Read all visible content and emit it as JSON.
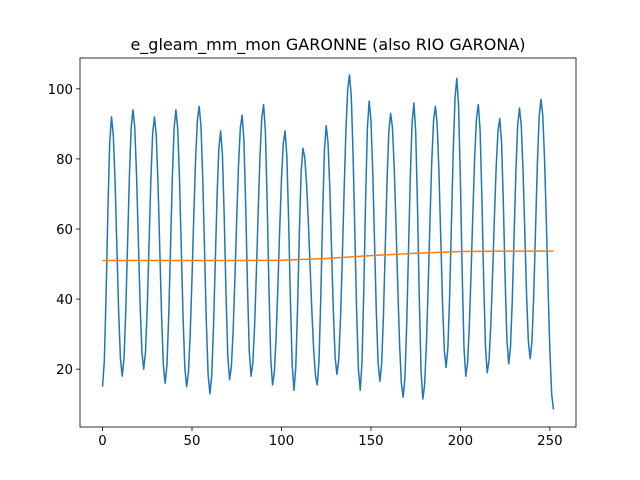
{
  "chart_data": {
    "type": "line",
    "title": "e_gleam_mm_mon GARONNE (also RIO GARONA)",
    "xlim": [
      -12.6,
      264.6
    ],
    "xticks": [
      0,
      50,
      100,
      150,
      200,
      250
    ],
    "ylim": [
      3.5,
      108.8
    ],
    "yticks": [
      20,
      40,
      60,
      80,
      100
    ],
    "series": [
      {
        "color": "#1f77b4",
        "x": [
          0,
          1,
          2,
          3,
          4,
          5,
          6,
          7,
          8,
          9,
          10,
          11,
          12,
          13,
          14,
          15,
          16,
          17,
          18,
          19,
          20,
          21,
          22,
          23,
          24,
          25,
          26,
          27,
          28,
          29,
          30,
          31,
          32,
          33,
          34,
          35,
          36,
          37,
          38,
          39,
          40,
          41,
          42,
          43,
          44,
          45,
          46,
          47,
          48,
          49,
          50,
          51,
          52,
          53,
          54,
          55,
          56,
          57,
          58,
          59,
          60,
          61,
          62,
          63,
          64,
          65,
          66,
          67,
          68,
          69,
          70,
          71,
          72,
          73,
          74,
          75,
          76,
          77,
          78,
          79,
          80,
          81,
          82,
          83,
          84,
          85,
          86,
          87,
          88,
          89,
          90,
          91,
          92,
          93,
          94,
          95,
          96,
          97,
          98,
          99,
          100,
          101,
          102,
          103,
          104,
          105,
          106,
          107,
          108,
          109,
          110,
          111,
          112,
          113,
          114,
          115,
          116,
          117,
          118,
          119,
          120,
          121,
          122,
          123,
          124,
          125,
          126,
          127,
          128,
          129,
          130,
          131,
          132,
          133,
          134,
          135,
          136,
          137,
          138,
          139,
          140,
          141,
          142,
          143,
          144,
          145,
          146,
          147,
          148,
          149,
          150,
          151,
          152,
          153,
          154,
          155,
          156,
          157,
          158,
          159,
          160,
          161,
          162,
          163,
          164,
          165,
          166,
          167,
          168,
          169,
          170,
          171,
          172,
          173,
          174,
          175,
          176,
          177,
          178,
          179,
          180,
          181,
          182,
          183,
          184,
          185,
          186,
          187,
          188,
          189,
          190,
          191,
          192,
          193,
          194,
          195,
          196,
          197,
          198,
          199,
          200,
          201,
          202,
          203,
          204,
          205,
          206,
          207,
          208,
          209,
          210,
          211,
          212,
          213,
          214,
          215,
          216,
          217,
          218,
          219,
          220,
          221,
          222,
          223,
          224,
          225,
          226,
          227,
          228,
          229,
          230,
          231,
          232,
          233,
          234,
          235,
          236,
          237,
          238,
          239,
          240,
          241,
          242,
          243,
          244,
          245,
          246,
          247,
          248,
          249,
          250,
          251,
          252
        ],
        "values": [
          15,
          22.4,
          41.6,
          65.4,
          84.6,
          92,
          87,
          73.5,
          55,
          36.5,
          23,
          18,
          23.1,
          37,
          56,
          75,
          88.9,
          94,
          89,
          75.5,
          57,
          38.5,
          25,
          20,
          24.8,
          38,
          56,
          74,
          87.2,
          92,
          86.9,
          73,
          54,
          35,
          21.1,
          16,
          21.2,
          35.5,
          55,
          74.5,
          88.8,
          94,
          88.7,
          74.3,
          54.5,
          34.8,
          20.3,
          15,
          19,
          30.1,
          46.1,
          63.9,
          79.9,
          91,
          95,
          89.5,
          74.5,
          54,
          33.5,
          18.5,
          13,
          18,
          31.8,
          50.5,
          69.3,
          83,
          88,
          81.2,
          63.5,
          41.5,
          23.8,
          17,
          20.7,
          31.2,
          46.3,
          63.2,
          78.3,
          88.8,
          92.5,
          85.4,
          66.8,
          43.7,
          25.1,
          18,
          21.8,
          32.6,
          48.1,
          65.4,
          80.9,
          91.7,
          95.5,
          87.9,
          67.9,
          43.1,
          23.1,
          15.5,
          19.1,
          29.2,
          43.7,
          59.8,
          74.3,
          84.4,
          88,
          80.9,
          62.4,
          39.6,
          21.1,
          14,
          20.6,
          37.8,
          59.2,
          76.4,
          83,
          80.4,
          73.1,
          62.2,
          49.3,
          36.3,
          25.4,
          18.1,
          15.5,
          22.6,
          41.1,
          63.9,
          82.4,
          89.5,
          84.7,
          71.8,
          54,
          36.3,
          23.3,
          18.5,
          22.7,
          34.6,
          51.7,
          70.8,
          87.9,
          99.8,
          104,
          98,
          81.5,
          59,
          36.5,
          20,
          14,
          21.9,
          42.5,
          68,
          88.6,
          96.5,
          91.1,
          76.5,
          56.5,
          36.5,
          21.9,
          16.5,
          21.6,
          35.6,
          54.8,
          73.9,
          87.9,
          93,
          89,
          77.7,
          61.5,
          43.5,
          27.3,
          16,
          12,
          17.6,
          33,
          54,
          75,
          90.4,
          96,
          87.9,
          66.8,
          40.7,
          19.6,
          11.5,
          15.6,
          27.2,
          44,
          62.5,
          79.3,
          90.9,
          95,
          90,
          76.4,
          57.8,
          39.1,
          25.5,
          20.5,
          26,
          41.1,
          61.8,
          82.4,
          97.5,
          103,
          94.9,
          73.6,
          47.4,
          26.1,
          18,
          21.8,
          32.6,
          48.1,
          65.4,
          80.9,
          91.7,
          95.5,
          88.2,
          69.1,
          45.4,
          26.3,
          19,
          22.6,
          32.7,
          47.2,
          63.3,
          77.8,
          87.9,
          91.5,
          84.8,
          67.3,
          45.7,
          28.2,
          21.5,
          26.4,
          39.8,
          58,
          76.3,
          89.6,
          94.5,
          89.7,
          76.6,
          58.8,
          40.9,
          27.8,
          23,
          28,
          41.5,
          60,
          78.5,
          92,
          97,
          92.6,
          80.3,
          62.6,
          42.9,
          25.2,
          12.9,
          8.5
        ]
      },
      {
        "color": "#ff7f0e",
        "x": [
          0,
          25,
          50,
          75,
          100,
          125,
          150,
          175,
          200,
          225,
          252
        ],
        "values": [
          51,
          51,
          51,
          51,
          51.1,
          51.6,
          52.4,
          53.1,
          53.6,
          53.7,
          53.7
        ]
      }
    ]
  }
}
